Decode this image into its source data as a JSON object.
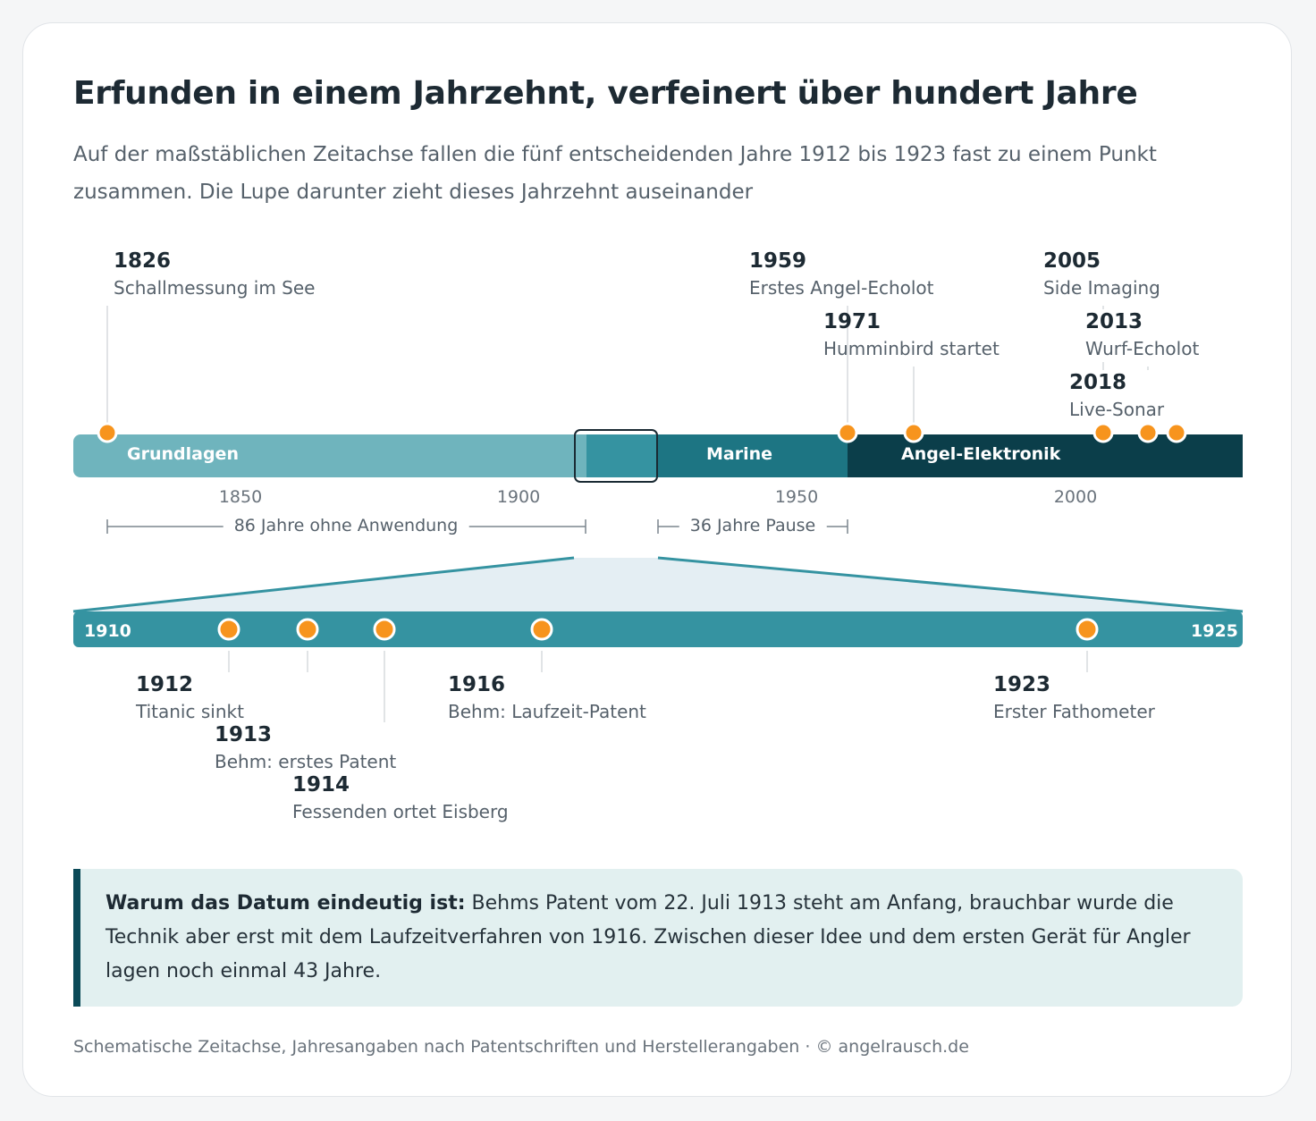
{
  "title": "Erfunden in einem Jahrzehnt, verfeinert über hundert Jahre",
  "subtitle": "Auf der maßstäblichen Zeitachse fallen die fünf entscheidenden Jahre 1912 bis 1923 fast zu einem Punkt zusammen. Die Lupe darunter zieht dieses Jahrzehnt auseinander",
  "colors": {
    "era_grundlagen": "#6fb4bd",
    "era_marine": "#1d7583",
    "era_angel": "#0b3e4a",
    "zoom_bar": "#3593a1",
    "marker": "#f7941d",
    "marker_ring": "#ffffff",
    "callout_bg": "#e2f0f0",
    "callout_border": "#0b4a58"
  },
  "chart_data": {
    "type": "timeline",
    "main_axis": {
      "range": [
        1820,
        2030
      ],
      "ticks": [
        "1850",
        "1900",
        "1950",
        "2000"
      ],
      "eras": [
        {
          "name": "Grundlagen",
          "start": 1820,
          "end": 1911
        },
        {
          "name": "Marine",
          "start": 1924,
          "end": 1959
        },
        {
          "name": "Angel-Elektronik",
          "start": 1959,
          "end": 2030
        }
      ],
      "lens": {
        "start": 1910,
        "end": 1925
      },
      "events": [
        {
          "year": "1826",
          "label": "Schallmessung im See"
        },
        {
          "year": "1959",
          "label": "Erstes Angel-Echolot"
        },
        {
          "year": "1971",
          "label": "Humminbird startet"
        },
        {
          "year": "2005",
          "label": "Side Imaging"
        },
        {
          "year": "2013",
          "label": "Wurf-Echolot"
        },
        {
          "year": "2018",
          "label": "Live-Sonar"
        }
      ],
      "gaps": [
        {
          "label": "86 Jahre ohne Anwendung",
          "from": 1826,
          "to": 1912
        },
        {
          "label": "36 Jahre Pause",
          "from": 1923,
          "to": 1959
        }
      ]
    },
    "zoom_axis": {
      "start_label": "1910",
      "end_label": "1925",
      "events": [
        {
          "year": "1912",
          "label": "Titanic sinkt"
        },
        {
          "year": "1913",
          "label": "Behm: erstes Patent"
        },
        {
          "year": "1914",
          "label": "Fessenden ortet Eisberg"
        },
        {
          "year": "1916",
          "label": "Behm: Laufzeit-Patent"
        },
        {
          "year": "1923",
          "label": "Erster Fathometer"
        }
      ]
    }
  },
  "callout": {
    "lead": "Warum das Datum eindeutig ist:",
    "text": " Behms Patent vom 22. Juli 1913 steht am Anfang, brauchbar wurde die Technik aber erst mit dem Laufzeitverfahren von 1916. Zwischen dieser Idee und dem ersten Gerät für Angler lagen noch einmal 43 Jahre."
  },
  "footer": "Schematische Zeitachse, Jahresangaben nach Patentschriften und Herstellerangaben · © angelrausch.de"
}
